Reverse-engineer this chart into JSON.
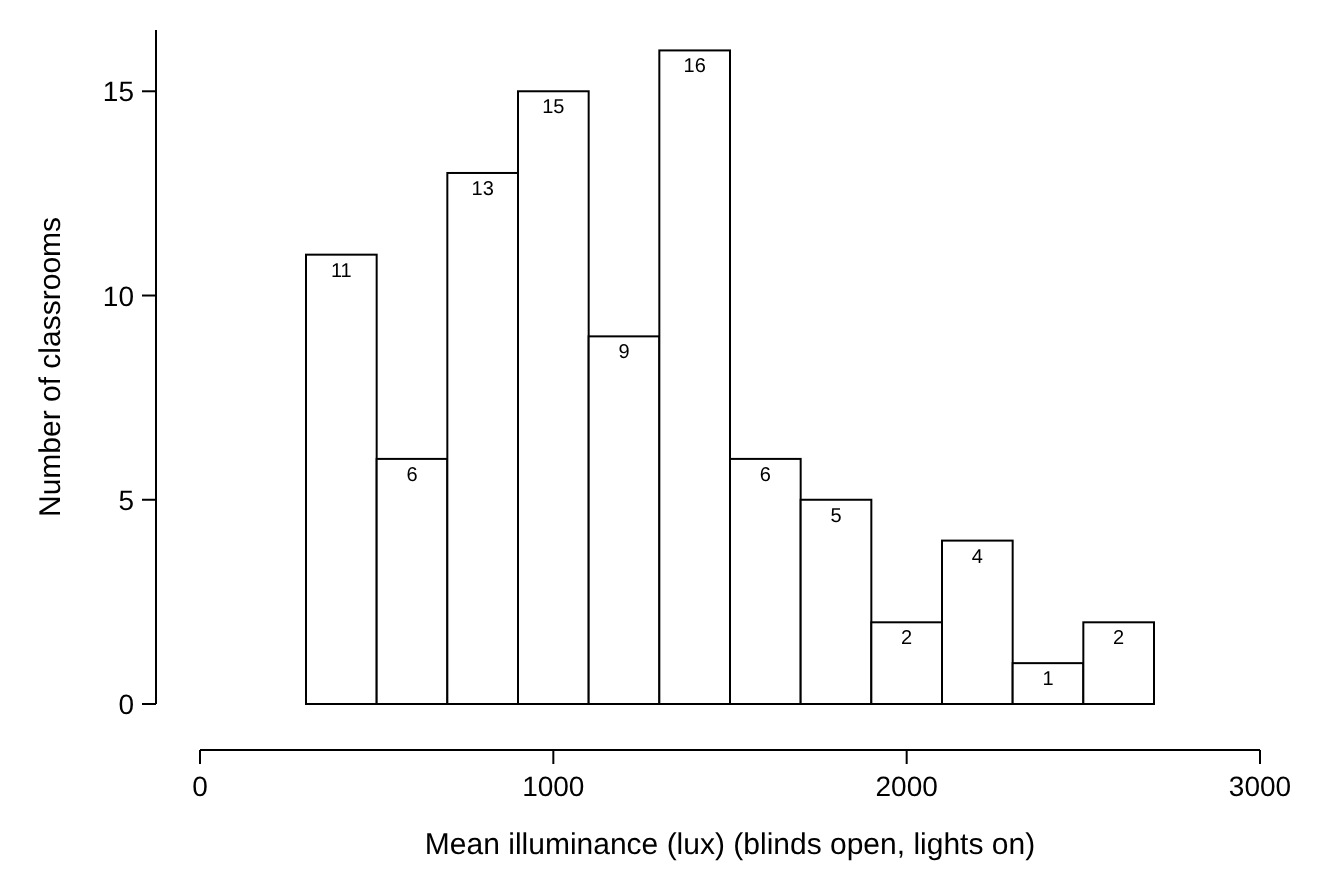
{
  "chart_data": {
    "type": "histogram",
    "xlabel": "Mean illuminance (lux) (blinds open, lights on)",
    "ylabel": "Number of classrooms",
    "bins": [
      300,
      500,
      700,
      900,
      1100,
      1300,
      1500,
      1700,
      1900,
      2100,
      2300,
      2500,
      2700
    ],
    "values": [
      11,
      6,
      13,
      15,
      9,
      16,
      6,
      5,
      2,
      4,
      1,
      2
    ],
    "color": "#ffffff",
    "data_labels": true,
    "grid": false,
    "xlim": [
      0,
      3000
    ],
    "xticks": [
      0,
      1000,
      2000,
      3000
    ],
    "ylim": [
      0,
      16.5
    ],
    "yticks": [
      0,
      5,
      10,
      15
    ]
  }
}
